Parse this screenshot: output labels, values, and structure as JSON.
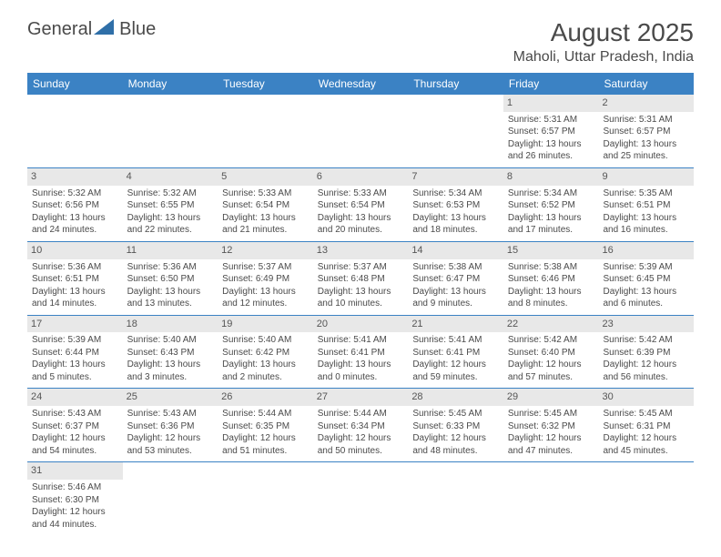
{
  "brand": {
    "word1": "General",
    "word2": "Blue"
  },
  "title": "August 2025",
  "location": "Maholi, Uttar Pradesh, India",
  "colors": {
    "header_bg": "#3b82c4",
    "header_text": "#ffffff",
    "daynum_bg": "#e8e8e8",
    "text": "#4a4a4a",
    "row_border": "#3b82c4",
    "logo_sail": "#2f6fa8"
  },
  "weekdays": [
    "Sunday",
    "Monday",
    "Tuesday",
    "Wednesday",
    "Thursday",
    "Friday",
    "Saturday"
  ],
  "weeks": [
    [
      {
        "n": "",
        "e": true
      },
      {
        "n": "",
        "e": true
      },
      {
        "n": "",
        "e": true
      },
      {
        "n": "",
        "e": true
      },
      {
        "n": "",
        "e": true
      },
      {
        "n": "1",
        "sr": "Sunrise: 5:31 AM",
        "ss": "Sunset: 6:57 PM",
        "d1": "Daylight: 13 hours",
        "d2": "and 26 minutes."
      },
      {
        "n": "2",
        "sr": "Sunrise: 5:31 AM",
        "ss": "Sunset: 6:57 PM",
        "d1": "Daylight: 13 hours",
        "d2": "and 25 minutes."
      }
    ],
    [
      {
        "n": "3",
        "sr": "Sunrise: 5:32 AM",
        "ss": "Sunset: 6:56 PM",
        "d1": "Daylight: 13 hours",
        "d2": "and 24 minutes."
      },
      {
        "n": "4",
        "sr": "Sunrise: 5:32 AM",
        "ss": "Sunset: 6:55 PM",
        "d1": "Daylight: 13 hours",
        "d2": "and 22 minutes."
      },
      {
        "n": "5",
        "sr": "Sunrise: 5:33 AM",
        "ss": "Sunset: 6:54 PM",
        "d1": "Daylight: 13 hours",
        "d2": "and 21 minutes."
      },
      {
        "n": "6",
        "sr": "Sunrise: 5:33 AM",
        "ss": "Sunset: 6:54 PM",
        "d1": "Daylight: 13 hours",
        "d2": "and 20 minutes."
      },
      {
        "n": "7",
        "sr": "Sunrise: 5:34 AM",
        "ss": "Sunset: 6:53 PM",
        "d1": "Daylight: 13 hours",
        "d2": "and 18 minutes."
      },
      {
        "n": "8",
        "sr": "Sunrise: 5:34 AM",
        "ss": "Sunset: 6:52 PM",
        "d1": "Daylight: 13 hours",
        "d2": "and 17 minutes."
      },
      {
        "n": "9",
        "sr": "Sunrise: 5:35 AM",
        "ss": "Sunset: 6:51 PM",
        "d1": "Daylight: 13 hours",
        "d2": "and 16 minutes."
      }
    ],
    [
      {
        "n": "10",
        "sr": "Sunrise: 5:36 AM",
        "ss": "Sunset: 6:51 PM",
        "d1": "Daylight: 13 hours",
        "d2": "and 14 minutes."
      },
      {
        "n": "11",
        "sr": "Sunrise: 5:36 AM",
        "ss": "Sunset: 6:50 PM",
        "d1": "Daylight: 13 hours",
        "d2": "and 13 minutes."
      },
      {
        "n": "12",
        "sr": "Sunrise: 5:37 AM",
        "ss": "Sunset: 6:49 PM",
        "d1": "Daylight: 13 hours",
        "d2": "and 12 minutes."
      },
      {
        "n": "13",
        "sr": "Sunrise: 5:37 AM",
        "ss": "Sunset: 6:48 PM",
        "d1": "Daylight: 13 hours",
        "d2": "and 10 minutes."
      },
      {
        "n": "14",
        "sr": "Sunrise: 5:38 AM",
        "ss": "Sunset: 6:47 PM",
        "d1": "Daylight: 13 hours",
        "d2": "and 9 minutes."
      },
      {
        "n": "15",
        "sr": "Sunrise: 5:38 AM",
        "ss": "Sunset: 6:46 PM",
        "d1": "Daylight: 13 hours",
        "d2": "and 8 minutes."
      },
      {
        "n": "16",
        "sr": "Sunrise: 5:39 AM",
        "ss": "Sunset: 6:45 PM",
        "d1": "Daylight: 13 hours",
        "d2": "and 6 minutes."
      }
    ],
    [
      {
        "n": "17",
        "sr": "Sunrise: 5:39 AM",
        "ss": "Sunset: 6:44 PM",
        "d1": "Daylight: 13 hours",
        "d2": "and 5 minutes."
      },
      {
        "n": "18",
        "sr": "Sunrise: 5:40 AM",
        "ss": "Sunset: 6:43 PM",
        "d1": "Daylight: 13 hours",
        "d2": "and 3 minutes."
      },
      {
        "n": "19",
        "sr": "Sunrise: 5:40 AM",
        "ss": "Sunset: 6:42 PM",
        "d1": "Daylight: 13 hours",
        "d2": "and 2 minutes."
      },
      {
        "n": "20",
        "sr": "Sunrise: 5:41 AM",
        "ss": "Sunset: 6:41 PM",
        "d1": "Daylight: 13 hours",
        "d2": "and 0 minutes."
      },
      {
        "n": "21",
        "sr": "Sunrise: 5:41 AM",
        "ss": "Sunset: 6:41 PM",
        "d1": "Daylight: 12 hours",
        "d2": "and 59 minutes."
      },
      {
        "n": "22",
        "sr": "Sunrise: 5:42 AM",
        "ss": "Sunset: 6:40 PM",
        "d1": "Daylight: 12 hours",
        "d2": "and 57 minutes."
      },
      {
        "n": "23",
        "sr": "Sunrise: 5:42 AM",
        "ss": "Sunset: 6:39 PM",
        "d1": "Daylight: 12 hours",
        "d2": "and 56 minutes."
      }
    ],
    [
      {
        "n": "24",
        "sr": "Sunrise: 5:43 AM",
        "ss": "Sunset: 6:37 PM",
        "d1": "Daylight: 12 hours",
        "d2": "and 54 minutes."
      },
      {
        "n": "25",
        "sr": "Sunrise: 5:43 AM",
        "ss": "Sunset: 6:36 PM",
        "d1": "Daylight: 12 hours",
        "d2": "and 53 minutes."
      },
      {
        "n": "26",
        "sr": "Sunrise: 5:44 AM",
        "ss": "Sunset: 6:35 PM",
        "d1": "Daylight: 12 hours",
        "d2": "and 51 minutes."
      },
      {
        "n": "27",
        "sr": "Sunrise: 5:44 AM",
        "ss": "Sunset: 6:34 PM",
        "d1": "Daylight: 12 hours",
        "d2": "and 50 minutes."
      },
      {
        "n": "28",
        "sr": "Sunrise: 5:45 AM",
        "ss": "Sunset: 6:33 PM",
        "d1": "Daylight: 12 hours",
        "d2": "and 48 minutes."
      },
      {
        "n": "29",
        "sr": "Sunrise: 5:45 AM",
        "ss": "Sunset: 6:32 PM",
        "d1": "Daylight: 12 hours",
        "d2": "and 47 minutes."
      },
      {
        "n": "30",
        "sr": "Sunrise: 5:45 AM",
        "ss": "Sunset: 6:31 PM",
        "d1": "Daylight: 12 hours",
        "d2": "and 45 minutes."
      }
    ],
    [
      {
        "n": "31",
        "sr": "Sunrise: 5:46 AM",
        "ss": "Sunset: 6:30 PM",
        "d1": "Daylight: 12 hours",
        "d2": "and 44 minutes."
      },
      {
        "n": "",
        "e": true
      },
      {
        "n": "",
        "e": true
      },
      {
        "n": "",
        "e": true
      },
      {
        "n": "",
        "e": true
      },
      {
        "n": "",
        "e": true
      },
      {
        "n": "",
        "e": true
      }
    ]
  ]
}
